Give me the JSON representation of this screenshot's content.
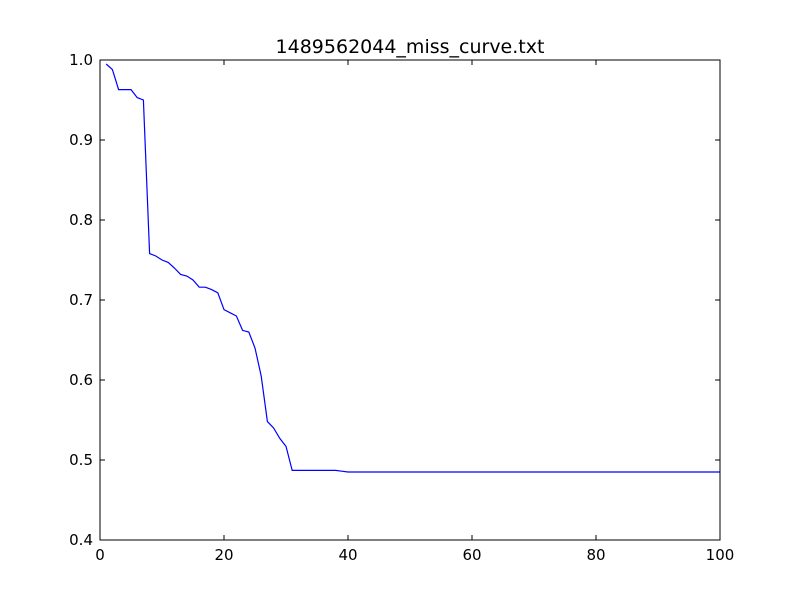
{
  "chart_data": {
    "type": "line",
    "title": "1489562044_miss_curve.txt",
    "xlabel": "",
    "ylabel": "",
    "xlim": [
      0,
      100
    ],
    "ylim": [
      0.4,
      1.0
    ],
    "x_ticks": [
      0,
      20,
      40,
      60,
      80,
      100
    ],
    "x_tick_labels": [
      "0",
      "20",
      "40",
      "60",
      "80",
      "100"
    ],
    "y_ticks": [
      0.4,
      0.5,
      0.6,
      0.7,
      0.8,
      0.9,
      1.0
    ],
    "y_tick_labels": [
      "0.4",
      "0.5",
      "0.6",
      "0.7",
      "0.8",
      "0.9",
      "1.0"
    ],
    "grid": false,
    "series": [
      {
        "color": "#0000ff",
        "x": [
          1,
          2,
          3,
          4,
          5,
          6,
          7,
          8,
          9,
          10,
          11,
          12,
          13,
          14,
          15,
          16,
          17,
          18,
          19,
          20,
          21,
          22,
          23,
          24,
          25,
          26,
          27,
          28,
          29,
          30,
          31,
          32,
          33,
          34,
          35,
          36,
          37,
          38,
          39,
          40,
          50,
          60,
          70,
          80,
          90,
          100
        ],
        "y": [
          0.995,
          0.988,
          0.963,
          0.963,
          0.963,
          0.953,
          0.95,
          0.758,
          0.755,
          0.75,
          0.747,
          0.74,
          0.732,
          0.73,
          0.725,
          0.716,
          0.716,
          0.713,
          0.709,
          0.688,
          0.684,
          0.68,
          0.662,
          0.66,
          0.64,
          0.605,
          0.548,
          0.54,
          0.527,
          0.517,
          0.487,
          0.487,
          0.487,
          0.487,
          0.487,
          0.487,
          0.487,
          0.487,
          0.486,
          0.485,
          0.485,
          0.485,
          0.485,
          0.485,
          0.485,
          0.485
        ]
      }
    ]
  }
}
